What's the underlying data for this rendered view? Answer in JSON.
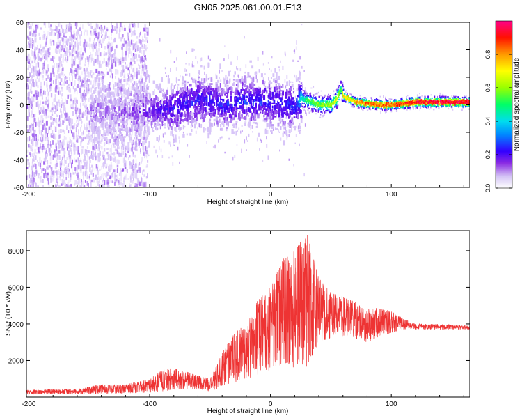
{
  "title": "GN05.2025.061.00.01.E13",
  "colors": {
    "snr_line": "#ee3333",
    "axis": "#000000",
    "background": "#ffffff"
  },
  "chart_data": [
    {
      "type": "heatmap",
      "title": "GN05.2025.061.00.01.E13",
      "xlabel": "Height of straight line (km)",
      "ylabel": "Frequency (Hz)",
      "xlim": [
        -202,
        165
      ],
      "ylim": [
        -60,
        60
      ],
      "xticks": [
        -200,
        -100,
        0,
        100
      ],
      "yticks": [
        60,
        40,
        20,
        0,
        -20,
        -40,
        -60
      ],
      "grid": false,
      "colorbar": {
        "label": "Normalized spectral amplitude",
        "range": [
          0,
          1
        ],
        "ticks": [
          "0.0",
          "0.2",
          "0.4",
          "0.6",
          "0.8"
        ],
        "colormap": [
          "#ffffff",
          "#cdb6f6",
          "#7a1ee8",
          "#3300ff",
          "#00ccff",
          "#00ff66",
          "#aaff00",
          "#ffff00",
          "#ff8800",
          "#ff0000",
          "#ff0088"
        ]
      },
      "ridge": {
        "x": [
          -150,
          -120,
          -100,
          -80,
          -60,
          -40,
          -20,
          0,
          10,
          20,
          25,
          30,
          40,
          50,
          55,
          58,
          60,
          65,
          70,
          80,
          90,
          100,
          110,
          120,
          140,
          165
        ],
        "freq": [
          -5,
          -6,
          -4,
          -3,
          5,
          0,
          3,
          2,
          0,
          -2,
          5,
          3,
          0,
          0,
          5,
          12,
          6,
          4,
          2,
          1,
          0,
          0,
          1,
          2,
          2,
          2
        ],
        "amplitude": [
          0.12,
          0.15,
          0.22,
          0.28,
          0.3,
          0.3,
          0.32,
          0.3,
          0.3,
          0.3,
          0.45,
          0.55,
          0.6,
          0.62,
          0.7,
          0.5,
          0.75,
          0.75,
          0.8,
          0.85,
          0.85,
          0.85,
          0.9,
          0.95,
          0.98,
          0.98
        ]
      }
    },
    {
      "type": "line",
      "xlabel": "Height of straight line (km)",
      "ylabel": "SNR (10 * v/v)",
      "xlim": [
        -202,
        165
      ],
      "ylim": [
        0,
        9100
      ],
      "xticks": [
        -200,
        -100,
        0,
        100
      ],
      "yticks": [
        2000,
        4000,
        6000,
        8000
      ],
      "grid": false,
      "envelope": {
        "x": [
          -202,
          -160,
          -140,
          -120,
          -100,
          -90,
          -80,
          -60,
          -50,
          -40,
          -30,
          -20,
          -10,
          0,
          10,
          20,
          30,
          40,
          50,
          60,
          70,
          80,
          90,
          100,
          110,
          120,
          140,
          165
        ],
        "low": [
          150,
          150,
          180,
          200,
          250,
          300,
          400,
          450,
          300,
          500,
          800,
          1000,
          1200,
          1500,
          1800,
          1600,
          1600,
          3000,
          3200,
          3300,
          3200,
          3000,
          3300,
          3500,
          3700,
          3700,
          3700,
          3700
        ],
        "high": [
          400,
          450,
          700,
          700,
          1000,
          1500,
          1600,
          1200,
          1000,
          2400,
          3500,
          4000,
          5400,
          6000,
          7600,
          8000,
          9000,
          6500,
          5700,
          5500,
          5200,
          4800,
          4900,
          4700,
          4300,
          4000,
          4000,
          3900
        ]
      }
    }
  ]
}
